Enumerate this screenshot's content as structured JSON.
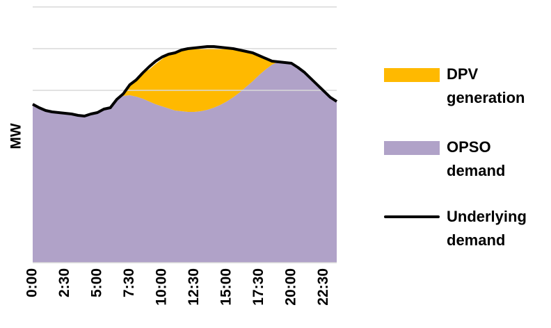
{
  "chart_data": {
    "type": "area",
    "y_label": "MW",
    "categories": [
      "0:00",
      null,
      null,
      null,
      null,
      "2:30",
      null,
      null,
      null,
      null,
      "5:00",
      null,
      null,
      null,
      null,
      "7:30",
      null,
      null,
      null,
      null,
      "10:00",
      null,
      null,
      null,
      null,
      "12:30",
      null,
      null,
      null,
      null,
      "15:00",
      null,
      null,
      null,
      null,
      "17:30",
      null,
      null,
      null,
      null,
      "20:00",
      null,
      null,
      null,
      null,
      "22:30",
      null,
      null
    ],
    "ylim": [
      0,
      3780
    ],
    "yticks": [
      2480,
      3080,
      3680
    ],
    "grid": true,
    "stacked": true,
    "series": [
      {
        "name": "DPV generation",
        "color": "#ffb900",
        "style": "area",
        "values": [
          0,
          0,
          0,
          0,
          0,
          0,
          0,
          0,
          0,
          0,
          0,
          0,
          0,
          0,
          30,
          150,
          240,
          370,
          460,
          580,
          680,
          780,
          830,
          880,
          910,
          920,
          920,
          910,
          880,
          830,
          770,
          700,
          610,
          510,
          410,
          280,
          160,
          50,
          0,
          0,
          0,
          0,
          0,
          0,
          0,
          0,
          0,
          0
        ]
      },
      {
        "name": "OPSO demand",
        "color": "#b0a2c8",
        "style": "area",
        "values": [
          2280,
          2230,
          2190,
          2170,
          2160,
          2150,
          2140,
          2120,
          2110,
          2140,
          2160,
          2210,
          2230,
          2350,
          2400,
          2410,
          2390,
          2360,
          2320,
          2280,
          2250,
          2220,
          2190,
          2180,
          2170,
          2170,
          2180,
          2200,
          2230,
          2270,
          2320,
          2380,
          2450,
          2530,
          2610,
          2700,
          2780,
          2850,
          2890,
          2880,
          2870,
          2810,
          2740,
          2650,
          2560,
          2470,
          2380,
          2320
        ]
      },
      {
        "name": "Underlying demand",
        "color": "#000000",
        "style": "line",
        "values": [
          2280,
          2230,
          2190,
          2170,
          2160,
          2150,
          2140,
          2120,
          2110,
          2140,
          2160,
          2210,
          2230,
          2350,
          2430,
          2560,
          2630,
          2730,
          2820,
          2900,
          2960,
          3000,
          3020,
          3060,
          3080,
          3090,
          3100,
          3110,
          3110,
          3100,
          3090,
          3080,
          3060,
          3040,
          3020,
          2980,
          2940,
          2900,
          2890,
          2880,
          2870,
          2810,
          2740,
          2650,
          2560,
          2470,
          2380,
          2320
        ]
      }
    ]
  }
}
